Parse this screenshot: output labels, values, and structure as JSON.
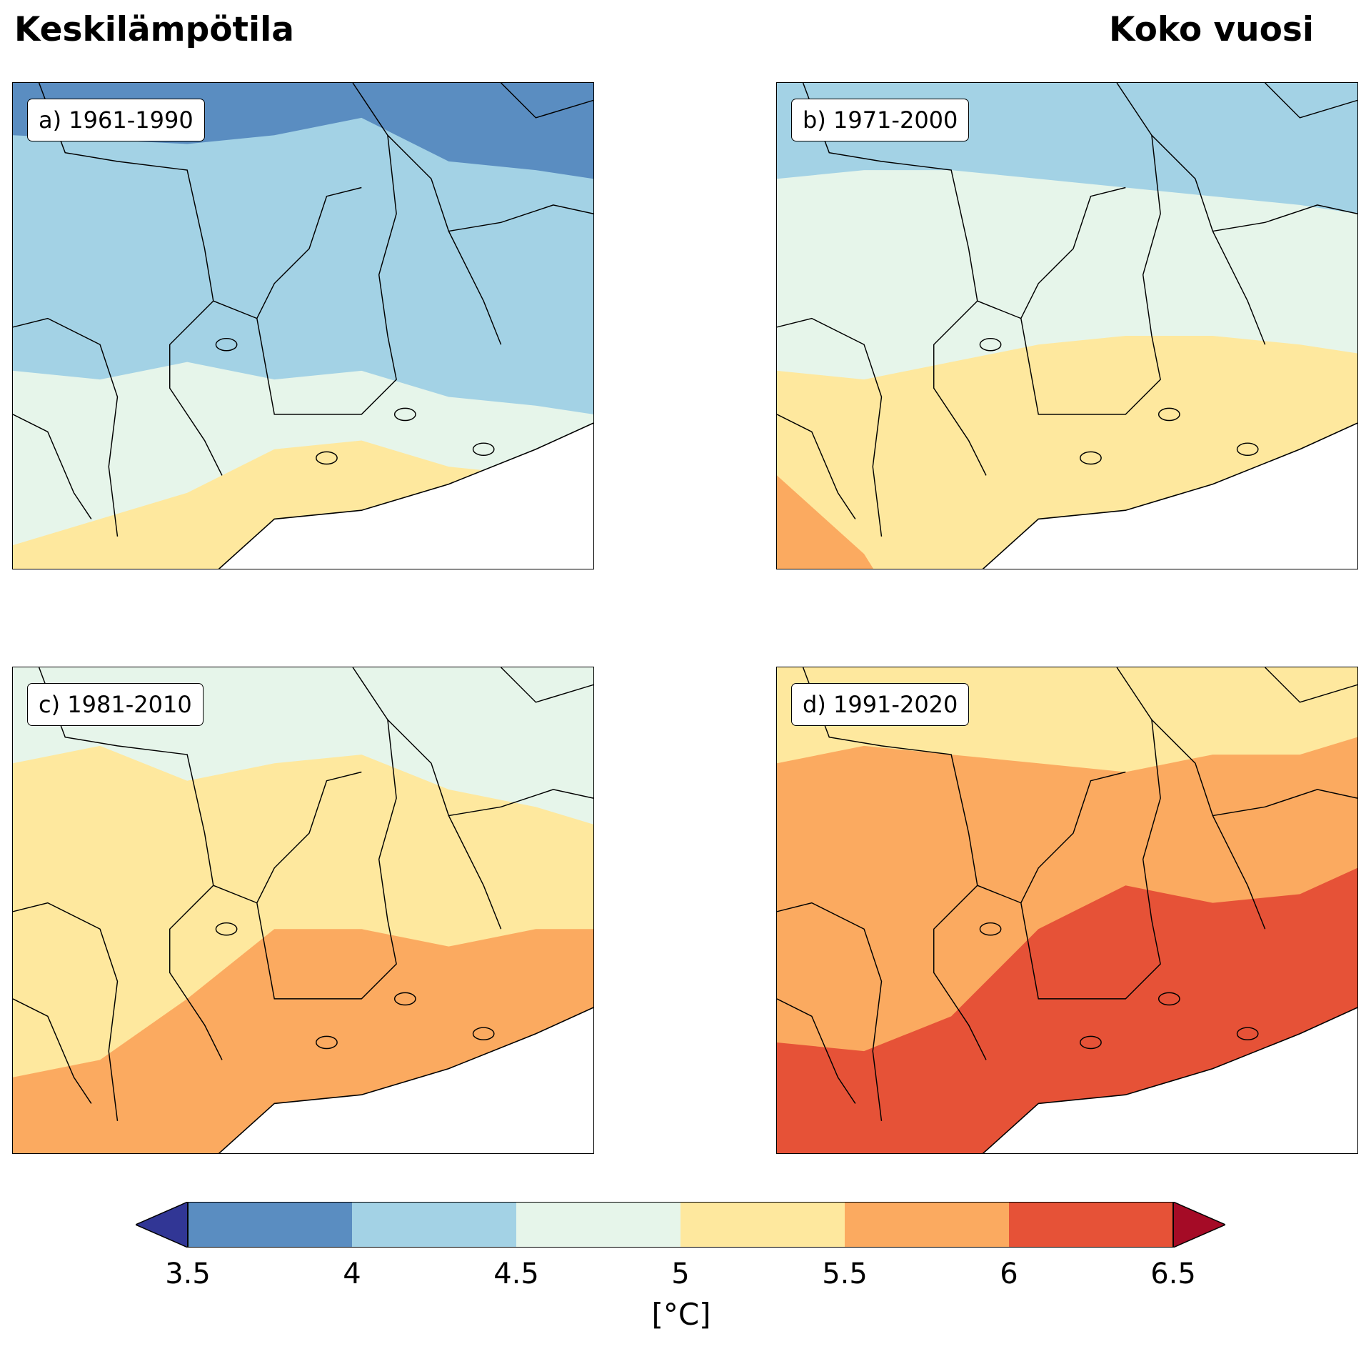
{
  "title_left": "Keskilämpötila",
  "title_right": "Koko vuosi",
  "colors": {
    "below": "#313695",
    "c1": "#5a8dc1",
    "c2": "#a3d2e5",
    "c3": "#e6f5ea",
    "c4": "#fee89e",
    "c5": "#fbaa60",
    "c6": "#e65237",
    "above": "#a50b26",
    "sea": "#ffffff",
    "border": "#000000"
  },
  "panels": [
    {
      "label": "a) 1961-1990",
      "bands": [
        "c1",
        "c2",
        "c3",
        "c4"
      ]
    },
    {
      "label": "b) 1971-2000",
      "bands": [
        "c2",
        "c3",
        "c4",
        "c5"
      ]
    },
    {
      "label": "c) 1981-2010",
      "bands": [
        "c3",
        "c4",
        "c5"
      ]
    },
    {
      "label": "d) 1991-2020",
      "bands": [
        "c4",
        "c5",
        "c6"
      ]
    }
  ],
  "colorbar": {
    "ticks": [
      "3.5",
      "4",
      "4.5",
      "5",
      "5.5",
      "6",
      "6.5"
    ],
    "unit": "[°C]",
    "extend": "both"
  }
}
